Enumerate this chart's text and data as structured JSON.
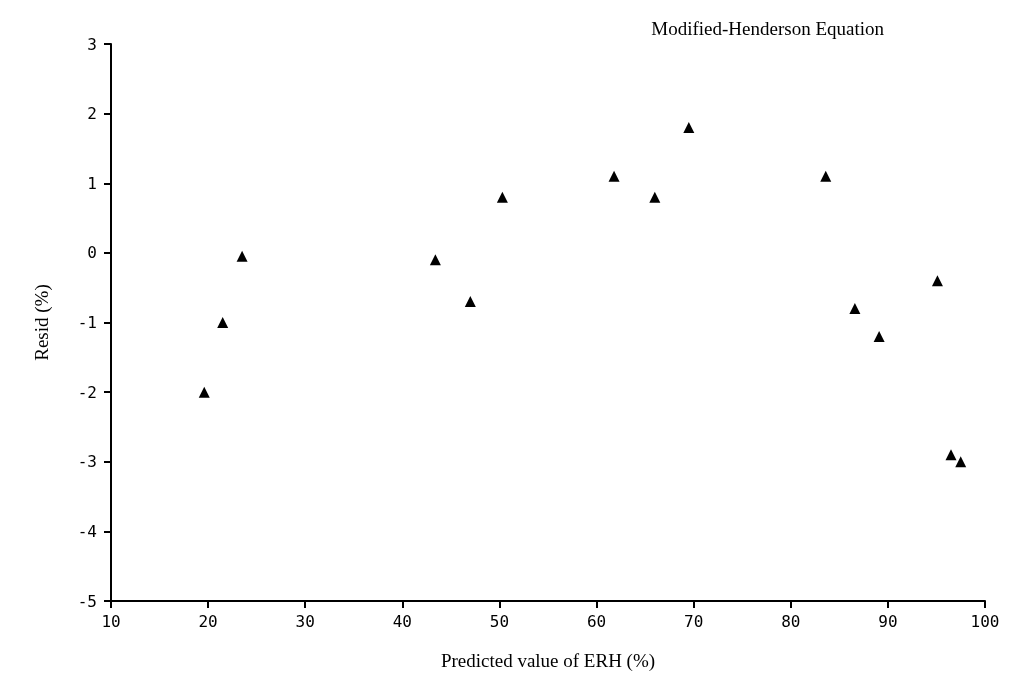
{
  "chart_data": {
    "type": "scatter",
    "title": "Modified-Henderson Equation",
    "xlabel": "Predicted value of ERH (%)",
    "ylabel": "Resid (%)",
    "x": [
      19.6,
      21.5,
      23.5,
      43.4,
      47.0,
      50.3,
      61.8,
      66.0,
      69.5,
      83.6,
      86.6,
      89.1,
      95.1,
      96.5,
      97.5
    ],
    "series": [
      {
        "color": "#000000",
        "values": [
          -2.0,
          -1.0,
          -0.05,
          -0.1,
          -0.7,
          0.8,
          1.1,
          0.8,
          1.8,
          1.1,
          -0.8,
          -1.2,
          -0.4,
          -2.9,
          -3.0
        ]
      }
    ],
    "xlim": [
      10,
      100
    ],
    "xticks": [
      10,
      20,
      30,
      40,
      50,
      60,
      70,
      80,
      90,
      100
    ],
    "ylim": [
      -5,
      3
    ],
    "yticks": [
      -5,
      -4,
      -3,
      -2,
      -1,
      0,
      1,
      2,
      3
    ],
    "marker": "triangle"
  }
}
